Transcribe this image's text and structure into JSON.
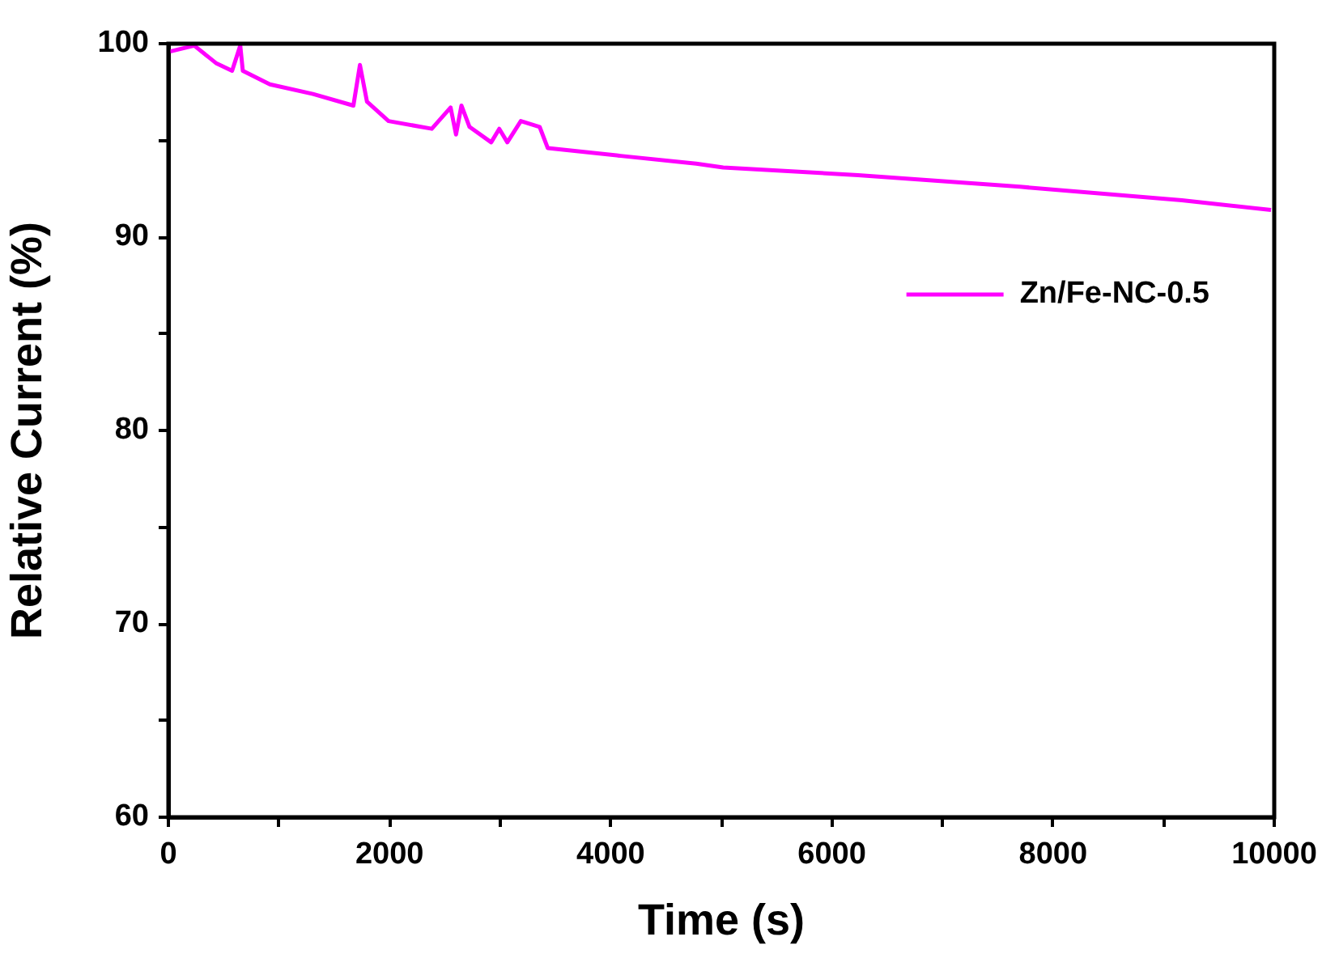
{
  "chart_data": {
    "type": "line",
    "xlabel": "Time (s)",
    "ylabel": "Relative Current (%)",
    "xlim": [
      0,
      10000
    ],
    "ylim": [
      60,
      100
    ],
    "xticks": [
      0,
      {
        "value": 1000,
        "label": null
      },
      2000,
      {
        "value": 3000,
        "label": null
      },
      4000,
      {
        "value": 5000,
        "label": null
      },
      6000,
      {
        "value": 7000,
        "label": null
      },
      8000,
      {
        "value": 9000,
        "label": null
      },
      10000
    ],
    "yticks": [
      60,
      {
        "value": 65,
        "label": null
      },
      70,
      {
        "value": 75,
        "label": null
      },
      80,
      {
        "value": 85,
        "label": null
      },
      90,
      {
        "value": 95,
        "label": null
      },
      100
    ],
    "legend": "top right",
    "grid": false,
    "marker": "none",
    "line_style": "solid",
    "series": [
      {
        "name": "Zn/Fe-NC-0.5",
        "color": "#ff00ff",
        "x": [
          15,
          234,
          430,
          576,
          650,
          673,
          918,
          1307,
          1673,
          1732,
          1796,
          1991,
          2382,
          2552,
          2601,
          2650,
          2723,
          2919,
          2992,
          3065,
          3187,
          3357,
          3431,
          4089,
          4773,
          5017,
          6237,
          7701,
          9165,
          9971
        ],
        "values": [
          99.6,
          99.9,
          99.0,
          98.6,
          99.9,
          98.6,
          97.9,
          97.4,
          96.8,
          98.9,
          97.0,
          96.0,
          95.6,
          96.7,
          95.3,
          96.8,
          95.7,
          94.9,
          95.6,
          94.9,
          96.0,
          95.7,
          94.6,
          94.2,
          93.8,
          93.6,
          93.2,
          92.6,
          91.9,
          91.4
        ]
      }
    ]
  }
}
